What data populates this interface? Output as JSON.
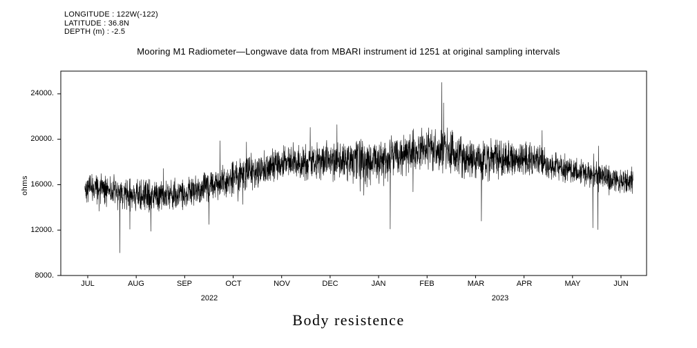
{
  "header": {
    "longitude": "LONGITUDE : 122W(-122)",
    "latitude": "LATITUDE : 36.8N",
    "depth": "DEPTH (m) : -2.5"
  },
  "title": "Mooring M1 Radiometer—Longwave data from MBARI instrument id 1251 at original sampling intervals",
  "bottom_title": "Body resistence",
  "chart_data": {
    "type": "line",
    "title": "Mooring M1 Radiometer—Longwave data from MBARI instrument id 1251 at original sampling intervals",
    "xlabel": "",
    "ylabel": "ohms",
    "ylim": [
      8000,
      26000
    ],
    "grid": false,
    "legend": "none",
    "line_color": "#000000",
    "yticks": [
      {
        "value": 8000,
        "label": "8000."
      },
      {
        "value": 12000,
        "label": "12000."
      },
      {
        "value": 16000,
        "label": "16000."
      },
      {
        "value": 20000,
        "label": "20000."
      },
      {
        "value": 24000,
        "label": "24000."
      }
    ],
    "xtick_labels": [
      "JUL",
      "AUG",
      "SEP",
      "OCT",
      "NOV",
      "DEC",
      "JAN",
      "FEB",
      "MAR",
      "APR",
      "MAY",
      "JUN"
    ],
    "year_labels": [
      {
        "label": "2022"
      },
      {
        "label": "2023"
      }
    ],
    "series": {
      "name": "body-resistance-ohms",
      "description": "Noisy high-frequency time series; monthly envelope values read from plot",
      "monthly_mean": [
        15800,
        15000,
        15200,
        16600,
        17900,
        18100,
        17900,
        19300,
        18200,
        18400,
        17200,
        16300
      ],
      "monthly_spread": [
        1300,
        1500,
        1300,
        1600,
        1500,
        1700,
        2000,
        1900,
        1900,
        1500,
        1200,
        1200
      ],
      "spikes": [
        {
          "month": 0.66,
          "value": 10000
        },
        {
          "month": 1.3,
          "value": 11900
        },
        {
          "month": 2.5,
          "value": 12500
        },
        {
          "month": 6.24,
          "value": 12100
        },
        {
          "month": 7.3,
          "value": 25000
        },
        {
          "month": 7.34,
          "value": 23200
        },
        {
          "month": 8.12,
          "value": 12800
        },
        {
          "month": 10.42,
          "value": 12200
        }
      ],
      "start_month": -0.06,
      "end_month": 11.25,
      "n_points": 3200,
      "seed": 42
    }
  }
}
